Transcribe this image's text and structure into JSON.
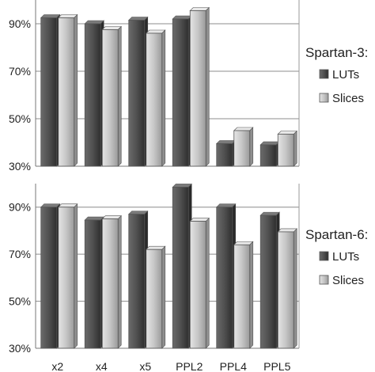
{
  "chart_data": [
    {
      "type": "bar",
      "categories": [
        "x2",
        "x4",
        "x5",
        "PPL2",
        "PPL4",
        "PPL5"
      ],
      "ylim": [
        30,
        100
      ],
      "yticks": [
        "30%",
        "50%",
        "70%",
        "90%"
      ],
      "ytick_values": [
        30,
        50,
        70,
        90
      ],
      "grid": true,
      "legend": {
        "title": "Spartan-3:",
        "position": "right"
      },
      "series": [
        {
          "name": "LUTs",
          "color": "#4a4a4a",
          "values": [
            92.5,
            90,
            91.5,
            92,
            39.5,
            39
          ]
        },
        {
          "name": "Slices",
          "color": "#c0c0c0",
          "values": [
            92.5,
            87.5,
            86,
            95.5,
            45,
            43.5
          ]
        }
      ]
    },
    {
      "type": "bar",
      "categories": [
        "x2",
        "x4",
        "x5",
        "PPL2",
        "PPL4",
        "PPL5"
      ],
      "ylim": [
        30,
        100
      ],
      "yticks": [
        "30%",
        "50%",
        "70%",
        "90%"
      ],
      "ytick_values": [
        30,
        50,
        70,
        90
      ],
      "grid": true,
      "legend": {
        "title": "Spartan-6:",
        "position": "right"
      },
      "series": [
        {
          "name": "LUTs",
          "color": "#4a4a4a",
          "values": [
            90,
            84.5,
            87,
            98.5,
            90,
            86.5
          ]
        },
        {
          "name": "Slices",
          "color": "#c0c0c0",
          "values": [
            90,
            85,
            72,
            84,
            74,
            79.5
          ]
        }
      ]
    }
  ]
}
